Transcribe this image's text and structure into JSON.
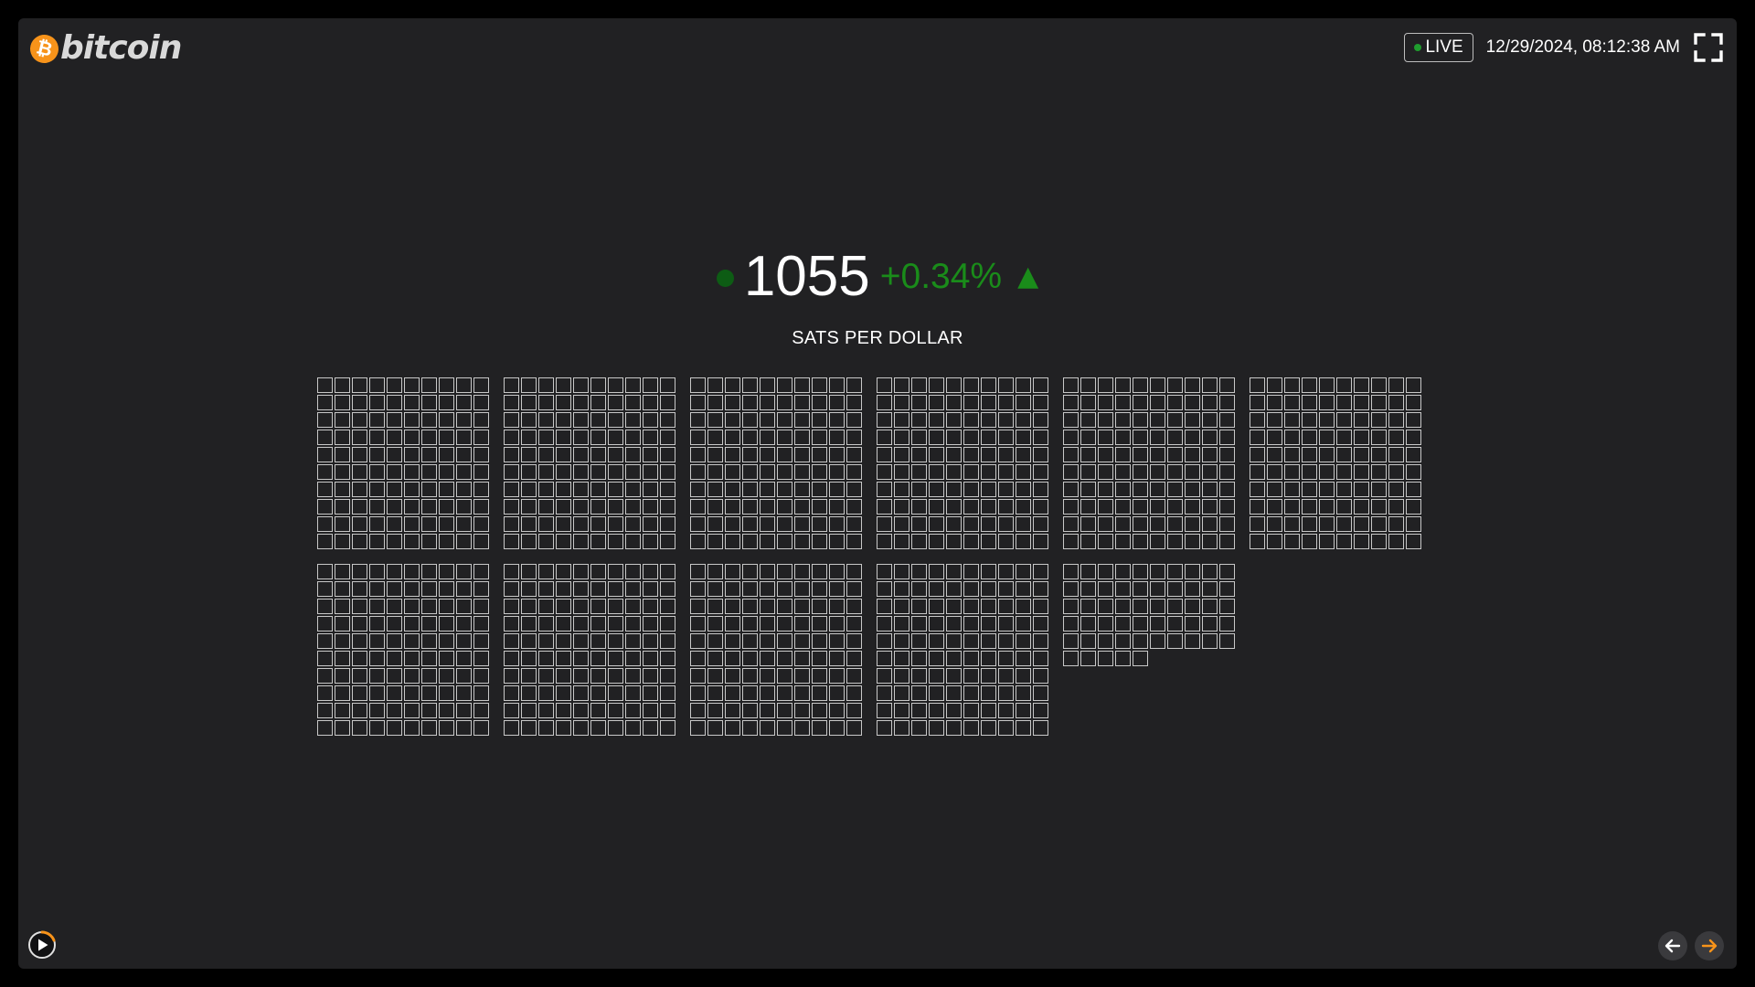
{
  "logo": {
    "coin_glyph": "₿",
    "wordmark": "bitcoin",
    "coin_color": "#f7931a"
  },
  "header": {
    "live_label": "LIVE",
    "live_color": "#1f9d2e",
    "datetime": "12/29/2024, 08:12:38 AM",
    "fullscreen_icon": "fullscreen-icon"
  },
  "price": {
    "value": "1055",
    "change": "+0.34%",
    "direction_icon": "▲",
    "up_color": "#1a8c1a",
    "dot_color": "#0d5c14",
    "unit_label": "SATS PER DOLLAR"
  },
  "sats_grid": {
    "total": 1055,
    "per_block": 100,
    "blocks_per_row": 6,
    "cells_per_row": 10
  },
  "controls": {
    "play_icon": "play-icon",
    "progress_color": "#f7931a",
    "prev_icon": "arrow-left-icon",
    "next_icon": "arrow-right-icon",
    "next_color": "#f7931a"
  }
}
